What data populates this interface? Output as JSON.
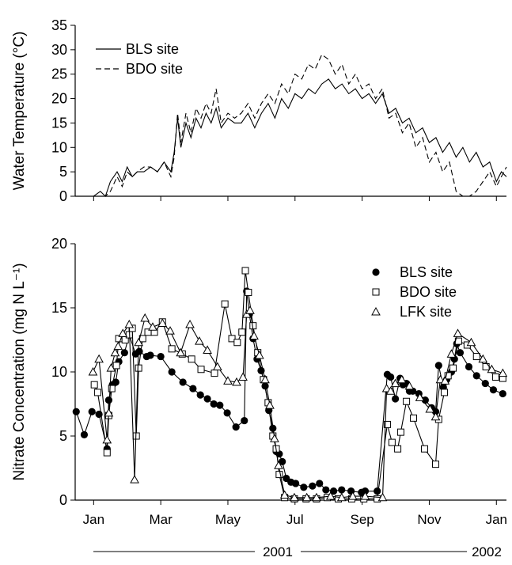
{
  "chart_data": [
    {
      "type": "line",
      "y_label": "Water Temperature (°C)",
      "legend": "upper left",
      "xlim": [
        -0.55,
        12.3
      ],
      "xticks": [
        0,
        2,
        4,
        6,
        8,
        10,
        12
      ],
      "ylim": [
        0,
        35
      ],
      "yticks": [
        0,
        5,
        10,
        15,
        20,
        25,
        30,
        35
      ],
      "x": [
        -0.5,
        -0.25,
        0,
        0.2,
        0.35,
        0.5,
        0.7,
        0.85,
        1,
        1.15,
        1.3,
        1.5,
        1.7,
        1.9,
        2.1,
        2.3,
        2.4,
        2.5,
        2.6,
        2.75,
        2.9,
        3.05,
        3.2,
        3.35,
        3.5,
        3.65,
        3.8,
        4,
        4.2,
        4.4,
        4.6,
        4.8,
        5,
        5.2,
        5.4,
        5.6,
        5.8,
        6,
        6.2,
        6.4,
        6.6,
        6.8,
        7,
        7.2,
        7.4,
        7.6,
        7.8,
        8,
        8.2,
        8.4,
        8.6,
        8.8,
        9,
        9.2,
        9.4,
        9.6,
        9.8,
        10,
        10.2,
        10.4,
        10.6,
        10.8,
        11,
        11.2,
        11.4,
        11.6,
        11.8,
        12,
        12.15,
        12.3
      ],
      "series": [
        {
          "name": "BLS site",
          "color": "#000000",
          "dash": "solid",
          "values": [
            0,
            0,
            0,
            1,
            0,
            3,
            5,
            3,
            6,
            4,
            5,
            5,
            6,
            5,
            7,
            5,
            9,
            16,
            10,
            15,
            12,
            16,
            14,
            17,
            15,
            18,
            14,
            16,
            15,
            15,
            17,
            14,
            17,
            19,
            16,
            20,
            18,
            21,
            20,
            22,
            21,
            23,
            24,
            22,
            23,
            21,
            22,
            20,
            21,
            19,
            21,
            17,
            18,
            15,
            16,
            13,
            14,
            11,
            12,
            9,
            11,
            8,
            10,
            7,
            9,
            6,
            7,
            3,
            5,
            4
          ]
        },
        {
          "name": "BDO site",
          "color": "#000000",
          "dash": "dashed",
          "values": [
            0,
            0,
            0,
            0,
            0,
            1,
            4,
            2,
            5,
            4,
            5,
            6,
            6,
            5,
            7,
            4,
            8,
            17,
            11,
            17,
            13,
            18,
            16,
            19,
            17,
            22,
            15,
            17,
            16,
            17,
            19,
            16,
            19,
            21,
            19,
            23,
            21,
            25,
            24,
            27,
            26,
            29,
            28,
            25,
            27,
            23,
            25,
            22,
            23,
            20,
            22,
            16,
            17,
            13,
            15,
            10,
            12,
            7,
            9,
            5,
            7,
            1,
            0,
            0,
            1,
            3,
            5,
            2,
            4,
            6
          ]
        }
      ]
    },
    {
      "type": "line",
      "y_label": "Nitrate Concentration (mg N L⁻¹)",
      "legend": "upper right",
      "xlim": [
        -0.55,
        12.3
      ],
      "xticks": [
        {
          "value": 0,
          "label": "Jan"
        },
        {
          "value": 2,
          "label": "Mar"
        },
        {
          "value": 4,
          "label": "May"
        },
        {
          "value": 6,
          "label": "Jul"
        },
        {
          "value": 8,
          "label": "Sep"
        },
        {
          "value": 10,
          "label": "Nov"
        },
        {
          "value": 12,
          "label": "Jan"
        }
      ],
      "ylim": [
        0,
        20
      ],
      "yticks": [
        0,
        5,
        10,
        15,
        20
      ],
      "annotations": [
        "2001",
        "2002"
      ],
      "series": [
        {
          "name": "BLS site",
          "color": "#000000",
          "marker": "circle",
          "x": [
            -0.52,
            -0.28,
            -0.05,
            0.16,
            0.4,
            0.45,
            0.56,
            0.66,
            0.75,
            0.92,
            1.06,
            1.25,
            1.36,
            1.58,
            1.69,
            2.0,
            2.33,
            2.66,
            2.96,
            3.18,
            3.39,
            3.58,
            3.76,
            3.98,
            4.24,
            4.49,
            4.56,
            4.64,
            4.75,
            4.87,
            4.99,
            5.11,
            5.22,
            5.34,
            5.44,
            5.53,
            5.62,
            5.74,
            5.88,
            6.02,
            6.26,
            6.52,
            6.73,
            6.92,
            7.15,
            7.39,
            7.67,
            7.98,
            8.09,
            8.45,
            8.75,
            8.85,
            8.99,
            9.13,
            9.22,
            9.32,
            9.41,
            9.51,
            9.69,
            9.88,
            10.07,
            10.19,
            10.28,
            10.42,
            10.52,
            10.66,
            10.75,
            10.82,
            10.92,
            11.18,
            11.41,
            11.67,
            11.91,
            12.19
          ],
          "values": [
            6.9,
            5.1,
            6.9,
            6.7,
            4.0,
            7.8,
            9.0,
            9.2,
            10.8,
            11.5,
            12.9,
            11.4,
            11.6,
            11.2,
            11.3,
            11.2,
            10.0,
            9.2,
            8.7,
            8.2,
            7.9,
            7.5,
            7.4,
            6.8,
            5.7,
            6.2,
            16.3,
            14.5,
            12.6,
            11.0,
            10.1,
            8.9,
            7.0,
            5.6,
            3.8,
            3.6,
            3.0,
            1.7,
            1.4,
            1.3,
            1.0,
            1.1,
            1.3,
            0.8,
            0.7,
            0.8,
            0.7,
            0.6,
            0.7,
            0.7,
            9.8,
            9.6,
            7.9,
            9.5,
            9.0,
            9.1,
            8.5,
            8.5,
            8.3,
            7.8,
            7.2,
            6.9,
            10.5,
            8.8,
            9.4,
            10.0,
            11.0,
            12.2,
            11.5,
            10.4,
            9.7,
            9.1,
            8.6,
            8.3
          ]
        },
        {
          "name": "BDO site",
          "color": "#000000",
          "marker": "square",
          "x": [
            0.02,
            0.12,
            0.4,
            0.45,
            0.54,
            0.68,
            0.75,
            0.94,
            1.06,
            1.15,
            1.27,
            1.34,
            1.46,
            1.62,
            1.81,
            2.05,
            2.33,
            2.64,
            2.92,
            3.2,
            3.6,
            3.91,
            4.12,
            4.28,
            4.42,
            4.52,
            4.61,
            4.75,
            4.89,
            5.06,
            5.2,
            5.34,
            5.44,
            5.53,
            5.69,
            5.98,
            6.33,
            6.64,
            6.96,
            7.29,
            7.69,
            8.05,
            8.45,
            8.75,
            8.89,
            9.06,
            9.15,
            9.32,
            9.53,
            9.86,
            10.19,
            10.28,
            10.45,
            10.56,
            10.71,
            10.87,
            11.13,
            11.41,
            11.69,
            11.98,
            12.19
          ],
          "values": [
            9.0,
            8.4,
            3.7,
            6.6,
            8.7,
            10.5,
            12.6,
            12.5,
            12.9,
            13.4,
            5.0,
            10.3,
            12.6,
            13.1,
            13.1,
            13.9,
            11.8,
            11.4,
            11.0,
            10.2,
            9.9,
            15.3,
            12.6,
            12.3,
            13.1,
            17.9,
            16.2,
            13.6,
            11.5,
            9.4,
            7.6,
            5.0,
            4.0,
            2.0,
            0.2,
            0.1,
            0.1,
            0.1,
            0.2,
            0.1,
            0.1,
            0.1,
            0.1,
            5.9,
            4.5,
            4.0,
            5.3,
            7.7,
            6.4,
            4.0,
            2.8,
            6.3,
            8.4,
            9.7,
            10.3,
            12.4,
            12.1,
            11.2,
            10.4,
            9.6,
            9.5
          ]
        },
        {
          "name": "LFK site",
          "color": "#000000",
          "marker": "triangle",
          "x": [
            -0.02,
            0.16,
            0.4,
            0.45,
            0.52,
            0.64,
            0.73,
            0.87,
            1.06,
            1.22,
            1.34,
            1.53,
            1.76,
            2.05,
            2.28,
            2.59,
            2.87,
            3.15,
            3.39,
            3.69,
            4.0,
            4.26,
            4.45,
            4.56,
            4.66,
            4.78,
            4.94,
            5.11,
            5.25,
            5.39,
            5.51,
            5.69,
            5.98,
            6.35,
            6.64,
            7.06,
            7.39,
            7.72,
            8.09,
            8.61,
            8.73,
            8.85,
            8.99,
            9.18,
            9.41,
            9.72,
            10.02,
            10.19,
            10.33,
            10.47,
            10.66,
            10.85,
            11.25,
            11.6,
            11.86,
            12.19
          ],
          "values": [
            10.0,
            11.0,
            4.7,
            6.8,
            10.3,
            11.5,
            12.0,
            13.0,
            13.7,
            1.6,
            12.3,
            14.2,
            13.5,
            13.8,
            13.2,
            11.5,
            13.7,
            12.4,
            11.7,
            10.4,
            9.3,
            9.2,
            9.6,
            14.5,
            14.8,
            12.8,
            11.3,
            9.4,
            7.4,
            4.8,
            2.7,
            0.4,
            0.2,
            0.2,
            0.2,
            0.3,
            0.2,
            0.3,
            0.3,
            0.2,
            8.7,
            8.5,
            9.1,
            9.4,
            8.9,
            8.0,
            7.1,
            6.5,
            9.4,
            9.3,
            11.4,
            13.0,
            12.3,
            11.0,
            10.2,
            9.9
          ]
        }
      ]
    }
  ]
}
